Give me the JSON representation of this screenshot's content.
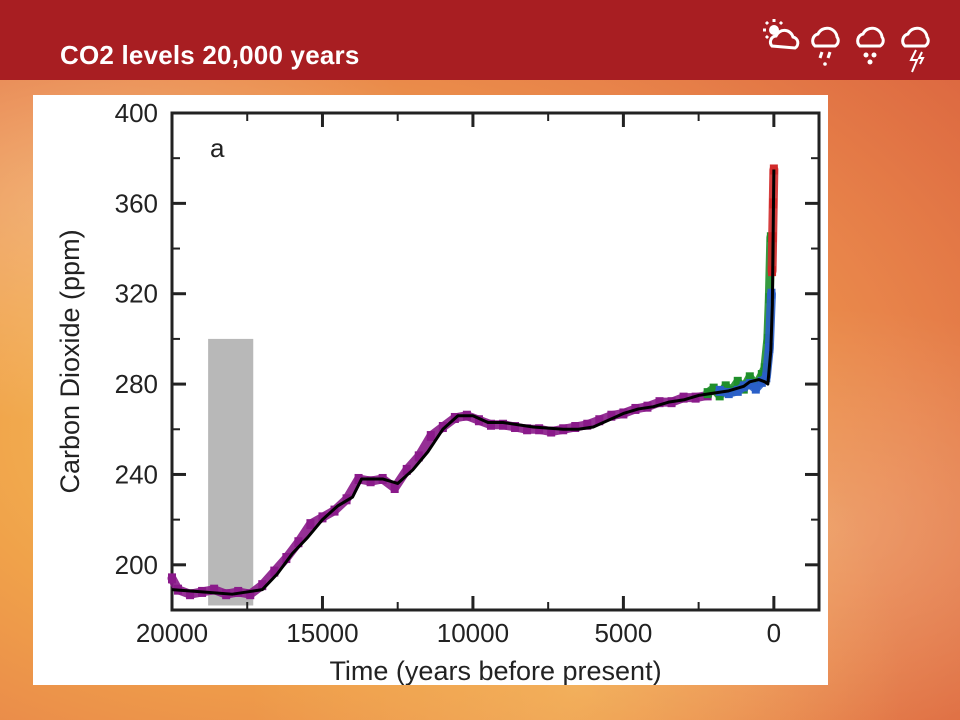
{
  "slide": {
    "title": "CO2 levels 20,000 years",
    "header_color": "#a81e22",
    "icons": [
      "sun-cloud-icon",
      "drizzle-icon",
      "hail-icon",
      "thunderstorm-icon"
    ]
  },
  "chart_data": {
    "type": "line",
    "title": "",
    "panel_label": "a",
    "xlabel": "Time (years before present)",
    "ylabel": "Carbon Dioxide (ppm)",
    "xlim": [
      20000,
      -1500
    ],
    "ylim": [
      180,
      400
    ],
    "x_reversed": true,
    "xticks": [
      20000,
      15000,
      10000,
      5000,
      0
    ],
    "xtick_labels": [
      "20000",
      "15000",
      "10000",
      "5000",
      "0"
    ],
    "yticks": [
      200,
      240,
      280,
      320,
      360,
      400
    ],
    "ytick_labels": [
      "200",
      "240",
      "280",
      "320",
      "360",
      "400"
    ],
    "grid": false,
    "legend": "none",
    "shaded_region": {
      "x": [
        18800,
        17300
      ],
      "y": [
        182,
        300
      ],
      "color": "#b8b8b8"
    },
    "series": [
      {
        "color": "#000000",
        "x": [
          20000,
          19000,
          18000,
          17500,
          17000,
          16500,
          16000,
          15500,
          15000,
          14500,
          14000,
          13700,
          13000,
          12500,
          12000,
          11500,
          11000,
          10500,
          10000,
          9500,
          9000,
          8000,
          7000,
          6500,
          6000,
          5500,
          5000,
          4500,
          4000,
          3500,
          3000,
          2500,
          2000,
          1500,
          1000,
          800,
          500,
          300,
          200,
          100,
          50,
          0
        ],
        "y": [
          189,
          188,
          187,
          188,
          189,
          196,
          205,
          212,
          220,
          226,
          230,
          238,
          238,
          236,
          242,
          250,
          260,
          266,
          266,
          263,
          263,
          261,
          260,
          260,
          261,
          264,
          267,
          269,
          270,
          272,
          273,
          275,
          276,
          277,
          279,
          281,
          282,
          281,
          280,
          295,
          315,
          375
        ]
      },
      {
        "color": "#8a1a8a",
        "x": [
          20000,
          19800,
          19400,
          19000,
          18600,
          18200,
          17800,
          17400,
          17000,
          16600,
          16200,
          15800,
          15400,
          15000,
          14600,
          14200,
          13800,
          13400,
          13000,
          12600,
          12200,
          11800,
          11400,
          11000,
          10600,
          10200,
          9800,
          9400,
          9000,
          8600,
          8200,
          7800,
          7400,
          7000,
          6600,
          6200,
          5800,
          5400,
          5000,
          4600,
          4200,
          3800,
          3400,
          3000,
          2600,
          2200
        ],
        "y": [
          194,
          189,
          187,
          188,
          189,
          187,
          188,
          187,
          191,
          197,
          203,
          210,
          218,
          221,
          224,
          229,
          238,
          237,
          238,
          234,
          242,
          248,
          257,
          261,
          265,
          266,
          264,
          262,
          262,
          261,
          260,
          260,
          259,
          260,
          261,
          262,
          264,
          266,
          267,
          269,
          270,
          272,
          272,
          274,
          274,
          275
        ]
      },
      {
        "color": "#1f8f2a",
        "x": [
          2200,
          2000,
          1800,
          1600,
          1400,
          1200,
          1000,
          800,
          600,
          400,
          300,
          200,
          150,
          100
        ],
        "y": [
          276,
          278,
          275,
          279,
          277,
          281,
          278,
          283,
          279,
          284,
          287,
          300,
          318,
          345
        ]
      },
      {
        "color": "#2a5fc8",
        "x": [
          1800,
          1500,
          1200,
          1000,
          800,
          600,
          400,
          250,
          150,
          80
        ],
        "y": [
          277,
          276,
          277,
          279,
          280,
          278,
          281,
          283,
          296,
          320
        ]
      },
      {
        "color": "#d22a2a",
        "x": [
          60,
          40,
          20,
          0
        ],
        "y": [
          330,
          345,
          360,
          375
        ]
      }
    ]
  }
}
